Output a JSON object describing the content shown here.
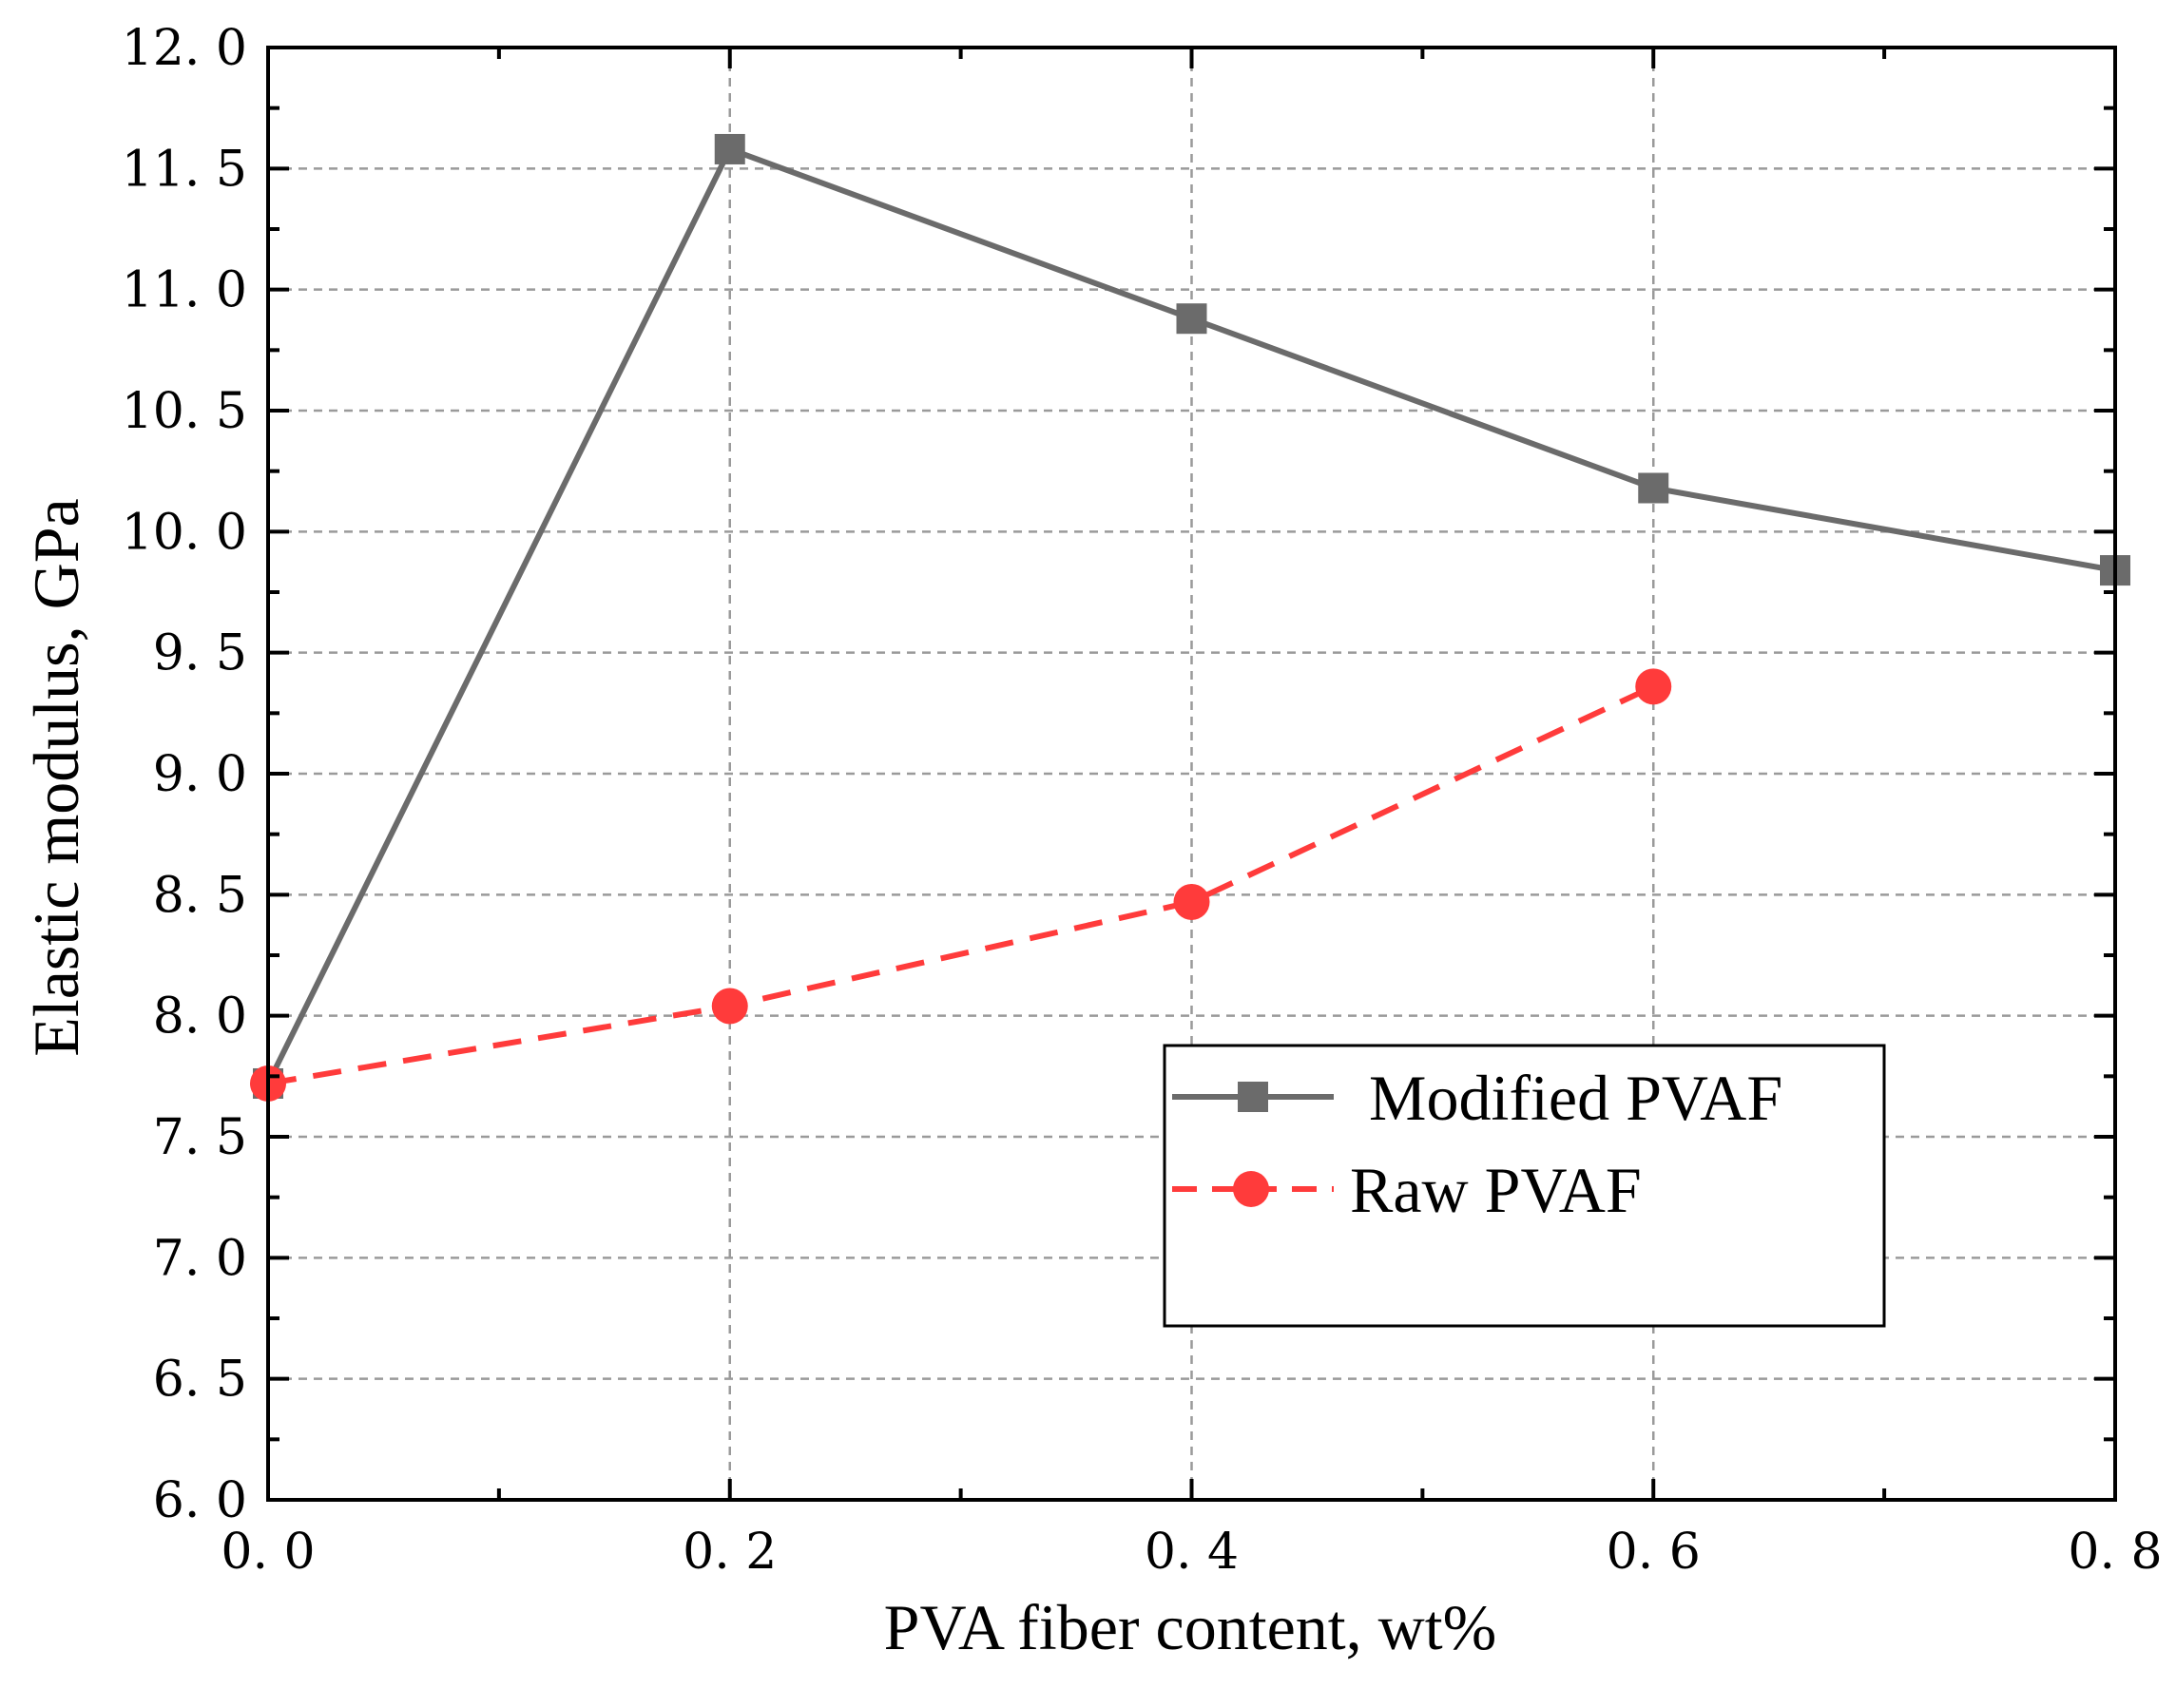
{
  "chart_data": {
    "type": "line",
    "xlabel": "PVA fiber content, wt%",
    "ylabel": "Elastic modulus, GPa",
    "xlim": [
      0.0,
      0.8
    ],
    "ylim": [
      6.0,
      12.0
    ],
    "x_ticks": [
      0.0,
      0.2,
      0.4,
      0.6,
      0.8
    ],
    "x_tick_labels": [
      "0. 0",
      "0. 2",
      "0. 4",
      "0. 6",
      "0. 8"
    ],
    "y_ticks": [
      6.0,
      6.5,
      7.0,
      7.5,
      8.0,
      8.5,
      9.0,
      9.5,
      10.0,
      10.5,
      11.0,
      11.5,
      12.0
    ],
    "y_tick_labels": [
      "6. 0",
      "6. 5",
      "7. 0",
      "7. 5",
      "8. 0",
      "8. 5",
      "9. 0",
      "9. 5",
      "10. 0",
      "10. 5",
      "11. 0",
      "11. 5",
      "12. 0"
    ],
    "grid": true,
    "legend_position": "lower-right",
    "series": [
      {
        "name": "Modified PVAF",
        "marker": "square",
        "line_style": "solid",
        "color": "#6b6b6b",
        "x": [
          0.0,
          0.2,
          0.4,
          0.6,
          0.8
        ],
        "values": [
          7.72,
          11.58,
          10.88,
          10.18,
          9.84
        ]
      },
      {
        "name": "Raw PVAF",
        "marker": "circle",
        "line_style": "dashed",
        "color": "#ff3b3b",
        "x": [
          0.0,
          0.2,
          0.4,
          0.6
        ],
        "values": [
          7.72,
          8.04,
          8.47,
          9.36
        ]
      }
    ]
  }
}
